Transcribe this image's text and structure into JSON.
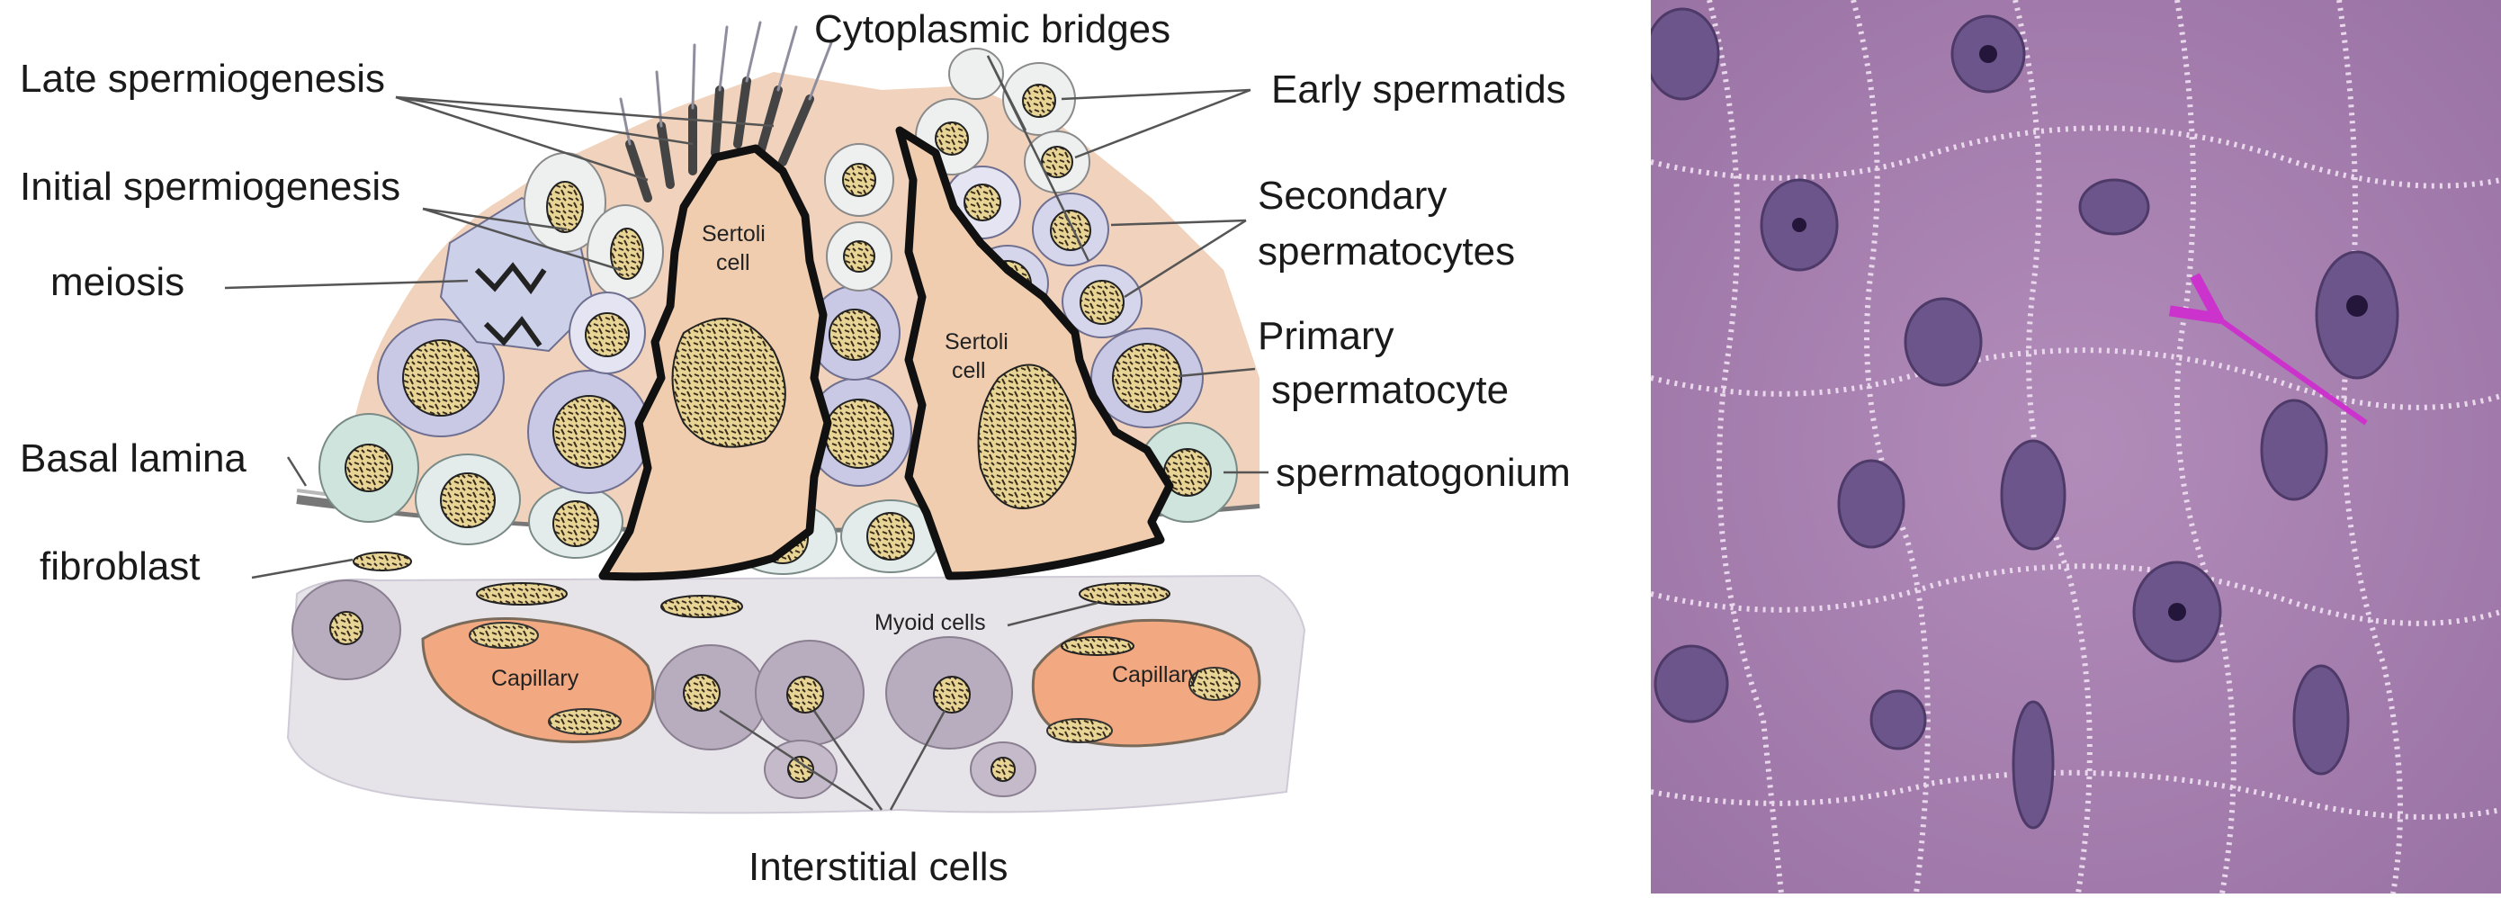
{
  "diagram": {
    "labels": {
      "cytoplasmic_bridges": "Cytoplasmic bridges",
      "late_spermiogenesis": "Late spermiogenesis",
      "early_spermatids": "Early spermatids",
      "initial_spermiogenesis": "Initial spermiogenesis",
      "secondary_line1": "Secondary",
      "secondary_line2": "spermatocytes",
      "meiosis": "meiosis",
      "primary_line1": "Primary",
      "primary_line2": "spermatocyte",
      "basal_lamina": "Basal lamina",
      "spermatogonium": "spermatogonium",
      "fibroblast": "fibroblast",
      "interstitial_cells": "Interstitial cells",
      "sertoli_line1": "Sertoli",
      "sertoli_line2": "cell",
      "myoid_cells": "Myoid cells",
      "capillary": "Capillary"
    },
    "colors": {
      "sertoli": "#f1cdb0",
      "nucleus": "#e8d596",
      "spermatocyte": "#c9c9e6",
      "spermatogonium": "#cfe4dd",
      "capillary": "#f2a880",
      "outline": "#111111"
    }
  },
  "micrograph": {
    "arrow_color": "#cc33cc",
    "tissue_color": "#a77fae"
  }
}
